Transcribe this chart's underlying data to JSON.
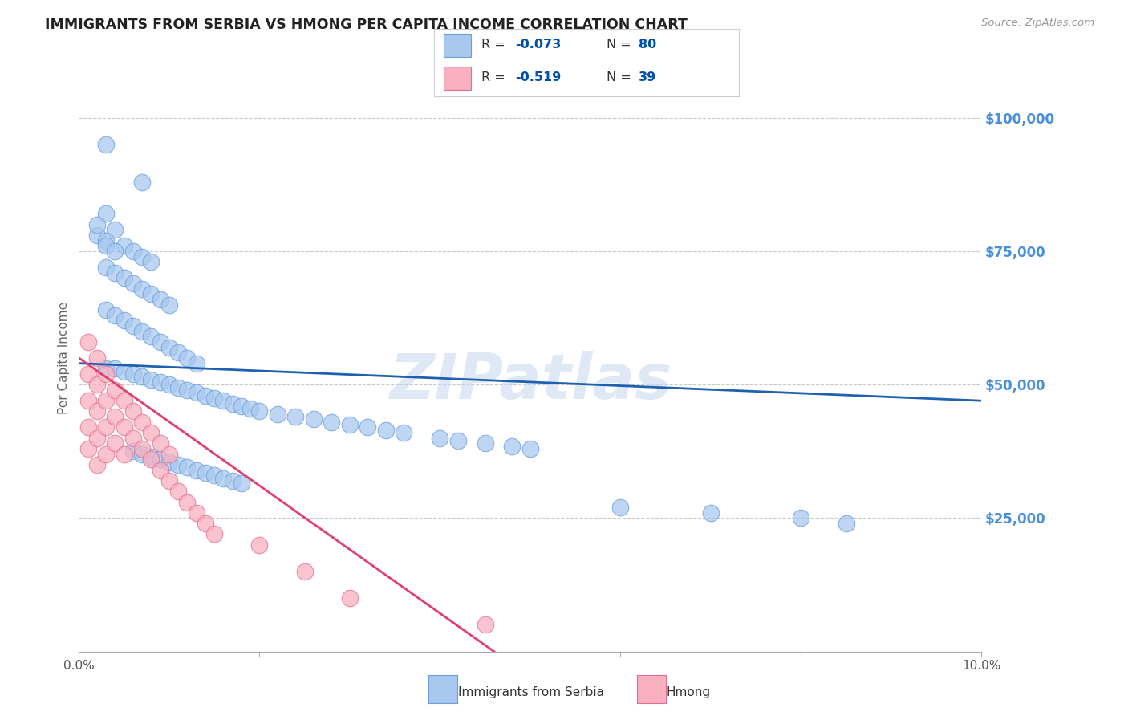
{
  "title": "IMMIGRANTS FROM SERBIA VS HMONG PER CAPITA INCOME CORRELATION CHART",
  "source": "Source: ZipAtlas.com",
  "ylabel": "Per Capita Income",
  "watermark": "ZIPatlas",
  "xlim": [
    0.0,
    0.1
  ],
  "ylim": [
    0,
    110000
  ],
  "serbia_color": "#a8c8f0",
  "serbia_edge": "#6a9fd8",
  "hmong_color": "#f8b0c0",
  "hmong_edge": "#e07090",
  "serbia_line_color": "#2060b0",
  "hmong_line_color": "#e04070",
  "serbia_R": "-0.073",
  "serbia_N": "80",
  "hmong_R": "-0.519",
  "hmong_N": "39",
  "legend_R_color": "#0050aa",
  "legend_N_color": "#0050aa",
  "grid_color": "#c8c8c8",
  "background_color": "#ffffff",
  "title_color": "#222222",
  "right_axis_color": "#4a90d9",
  "serbia_line_x": [
    0.0,
    0.1
  ],
  "serbia_line_y": [
    54000,
    47000
  ],
  "hmong_line_x": [
    0.0,
    0.046
  ],
  "hmong_line_y": [
    55000,
    0
  ],
  "serbia_scatter_x": [
    0.003,
    0.007,
    0.003,
    0.004,
    0.005,
    0.006,
    0.007,
    0.008,
    0.003,
    0.004,
    0.005,
    0.006,
    0.007,
    0.008,
    0.009,
    0.01,
    0.003,
    0.004,
    0.005,
    0.006,
    0.007,
    0.008,
    0.009,
    0.01,
    0.011,
    0.012,
    0.013,
    0.003,
    0.004,
    0.005,
    0.006,
    0.007,
    0.008,
    0.009,
    0.01,
    0.011,
    0.012,
    0.013,
    0.014,
    0.015,
    0.016,
    0.017,
    0.018,
    0.019,
    0.02,
    0.022,
    0.024,
    0.026,
    0.028,
    0.03,
    0.032,
    0.034,
    0.036,
    0.04,
    0.042,
    0.045,
    0.048,
    0.05,
    0.006,
    0.007,
    0.008,
    0.009,
    0.01,
    0.011,
    0.012,
    0.013,
    0.014,
    0.015,
    0.016,
    0.017,
    0.018,
    0.002,
    0.002,
    0.003,
    0.003,
    0.004,
    0.06,
    0.07,
    0.08,
    0.085
  ],
  "serbia_scatter_y": [
    95000,
    88000,
    82000,
    79000,
    76000,
    75000,
    74000,
    73000,
    72000,
    71000,
    70000,
    69000,
    68000,
    67000,
    66000,
    65000,
    64000,
    63000,
    62000,
    61000,
    60000,
    59000,
    58000,
    57000,
    56000,
    55000,
    54000,
    53000,
    53000,
    52500,
    52000,
    51500,
    51000,
    50500,
    50000,
    49500,
    49000,
    48500,
    48000,
    47500,
    47000,
    46500,
    46000,
    45500,
    45000,
    44500,
    44000,
    43500,
    43000,
    42500,
    42000,
    41500,
    41000,
    40000,
    39500,
    39000,
    38500,
    38000,
    37500,
    37000,
    36500,
    36000,
    35500,
    35000,
    34500,
    34000,
    33500,
    33000,
    32500,
    32000,
    31500,
    78000,
    80000,
    77000,
    76000,
    75000,
    27000,
    26000,
    25000,
    24000
  ],
  "hmong_scatter_x": [
    0.001,
    0.001,
    0.001,
    0.001,
    0.001,
    0.002,
    0.002,
    0.002,
    0.002,
    0.002,
    0.003,
    0.003,
    0.003,
    0.003,
    0.004,
    0.004,
    0.004,
    0.005,
    0.005,
    0.005,
    0.006,
    0.006,
    0.007,
    0.007,
    0.008,
    0.008,
    0.009,
    0.009,
    0.01,
    0.01,
    0.011,
    0.012,
    0.013,
    0.014,
    0.015,
    0.02,
    0.025,
    0.03,
    0.045
  ],
  "hmong_scatter_y": [
    58000,
    52000,
    47000,
    42000,
    38000,
    55000,
    50000,
    45000,
    40000,
    35000,
    52000,
    47000,
    42000,
    37000,
    49000,
    44000,
    39000,
    47000,
    42000,
    37000,
    45000,
    40000,
    43000,
    38000,
    41000,
    36000,
    39000,
    34000,
    37000,
    32000,
    30000,
    28000,
    26000,
    24000,
    22000,
    20000,
    15000,
    10000,
    5000
  ]
}
